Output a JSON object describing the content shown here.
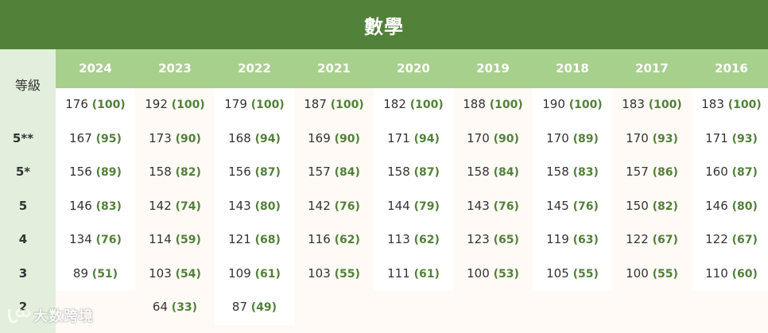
{
  "title": "數學",
  "grade_header": "等級",
  "years": [
    "2024",
    "2023",
    "2022",
    "2021",
    "2020",
    "2019",
    "2018",
    "2017",
    "2016"
  ],
  "grades": [
    "",
    "5**",
    "5*",
    "5",
    "4",
    "3",
    "2"
  ],
  "rows": [
    {
      "grade": "",
      "cells": [
        {
          "score": "176",
          "pct": "(100)"
        },
        {
          "score": "192",
          "pct": "(100)"
        },
        {
          "score": "179",
          "pct": "(100)"
        },
        {
          "score": "187",
          "pct": "(100)"
        },
        {
          "score": "182",
          "pct": "(100)"
        },
        {
          "score": "188",
          "pct": "(100)"
        },
        {
          "score": "190",
          "pct": "(100)"
        },
        {
          "score": "183",
          "pct": "(100)"
        },
        {
          "score": "183",
          "pct": "(100)"
        }
      ]
    },
    {
      "grade": "5**",
      "cells": [
        {
          "score": "167",
          "pct": "(95)"
        },
        {
          "score": "173",
          "pct": "(90)"
        },
        {
          "score": "168",
          "pct": "(94)"
        },
        {
          "score": "169",
          "pct": "(90)"
        },
        {
          "score": "171",
          "pct": "(94)"
        },
        {
          "score": "170",
          "pct": "(90)"
        },
        {
          "score": "170",
          "pct": "(89)"
        },
        {
          "score": "170",
          "pct": "(93)"
        },
        {
          "score": "171",
          "pct": "(93)"
        }
      ]
    },
    {
      "grade": "5*",
      "cells": [
        {
          "score": "156",
          "pct": "(89)"
        },
        {
          "score": "158",
          "pct": "(82)"
        },
        {
          "score": "156",
          "pct": "(87)"
        },
        {
          "score": "157",
          "pct": "(84)"
        },
        {
          "score": "158",
          "pct": "(87)"
        },
        {
          "score": "158",
          "pct": "(84)"
        },
        {
          "score": "158",
          "pct": "(83)"
        },
        {
          "score": "157",
          "pct": "(86)"
        },
        {
          "score": "160",
          "pct": "(87)"
        }
      ]
    },
    {
      "grade": "5",
      "cells": [
        {
          "score": "146",
          "pct": "(83)"
        },
        {
          "score": "142",
          "pct": "(74)"
        },
        {
          "score": "143",
          "pct": "(80)"
        },
        {
          "score": "142",
          "pct": "(76)"
        },
        {
          "score": "144",
          "pct": "(79)"
        },
        {
          "score": "143",
          "pct": "(76)"
        },
        {
          "score": "145",
          "pct": "(76)"
        },
        {
          "score": "150",
          "pct": "(82)"
        },
        {
          "score": "146",
          "pct": "(80)"
        }
      ]
    },
    {
      "grade": "4",
      "cells": [
        {
          "score": "134",
          "pct": "(76)"
        },
        {
          "score": "114",
          "pct": "(59)"
        },
        {
          "score": "121",
          "pct": "(68)"
        },
        {
          "score": "116",
          "pct": "(62)"
        },
        {
          "score": "113",
          "pct": "(62)"
        },
        {
          "score": "123",
          "pct": "(65)"
        },
        {
          "score": "119",
          "pct": "(63)"
        },
        {
          "score": "122",
          "pct": "(67)"
        },
        {
          "score": "122",
          "pct": "(67)"
        }
      ]
    },
    {
      "grade": "3",
      "cells": [
        {
          "score": "89",
          "pct": "(51)"
        },
        {
          "score": "103",
          "pct": "(54)"
        },
        {
          "score": "109",
          "pct": "(61)"
        },
        {
          "score": "103",
          "pct": "(55)"
        },
        {
          "score": "111",
          "pct": "(61)"
        },
        {
          "score": "100",
          "pct": "(53)"
        },
        {
          "score": "105",
          "pct": "(55)"
        },
        {
          "score": "100",
          "pct": "(55)"
        },
        {
          "score": "110",
          "pct": "(60)"
        }
      ]
    },
    {
      "grade": "2",
      "cells": [
        {
          "score": "",
          "pct": ""
        },
        {
          "score": "64",
          "pct": "(33)"
        },
        {
          "score": "87",
          "pct": "(49)"
        },
        {
          "score": "",
          "pct": ""
        },
        {
          "score": "",
          "pct": ""
        },
        {
          "score": "",
          "pct": ""
        },
        {
          "score": "",
          "pct": ""
        },
        {
          "score": "",
          "pct": ""
        },
        {
          "score": "",
          "pct": ""
        }
      ]
    }
  ],
  "watermark": "大数跨境",
  "colors": {
    "title_bg": "#52813a",
    "header_bg": "#a8d08d",
    "left_col_bg": "#e2efdc",
    "page_bg": "#fffaf5",
    "pct_text": "#52813a"
  }
}
